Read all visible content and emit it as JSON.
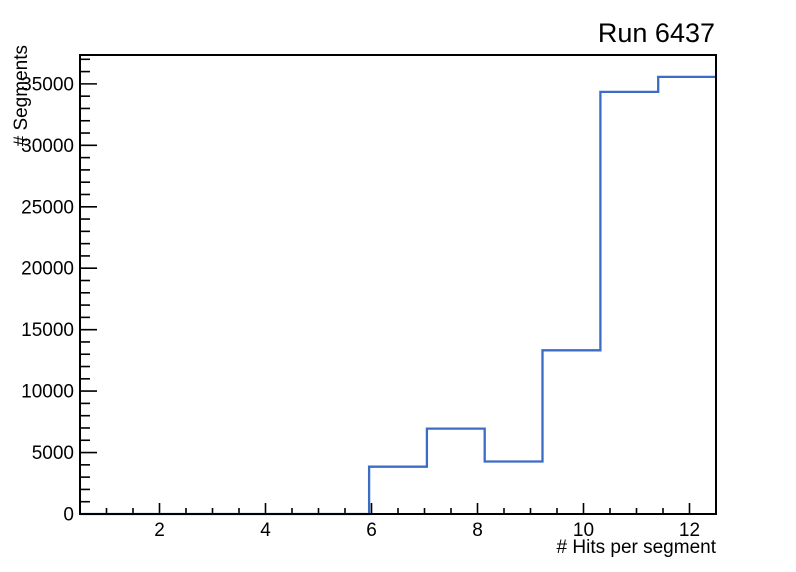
{
  "window": {
    "background": "#ffffff"
  },
  "chart_data": {
    "type": "bar",
    "style": "root-step-histogram",
    "title": "Run 6437",
    "xlabel": "# Hits per segment",
    "ylabel": "# Segments",
    "xlim": [
      0.5,
      12.5
    ],
    "ylim": [
      0,
      37350
    ],
    "nbins": 11,
    "bin_edges": [
      0.5,
      1.5909,
      2.6818,
      3.7727,
      4.8636,
      5.9545,
      7.0455,
      8.1364,
      9.2273,
      10.3182,
      11.4091,
      12.5
    ],
    "values": [
      0,
      0,
      0,
      0,
      0,
      3850,
      6950,
      4270,
      13320,
      34350,
      35570
    ],
    "x_major_ticks": [
      2,
      4,
      6,
      8,
      10,
      12
    ],
    "x_tick_labels": [
      "2",
      "4",
      "6",
      "8",
      "10",
      "12"
    ],
    "x_minor_step": 0.5,
    "y_major_step": 5000,
    "y_minor_step": 1000,
    "y_major_ticks": [
      0,
      5000,
      10000,
      15000,
      20000,
      25000,
      30000,
      35000
    ],
    "y_tick_labels": [
      "0",
      "5000",
      "10000",
      "15000",
      "20000",
      "25000",
      "30000",
      "35000"
    ],
    "line_color": "#3b6cc6",
    "axis_color": "#000000",
    "grid": false,
    "legend": "none"
  }
}
